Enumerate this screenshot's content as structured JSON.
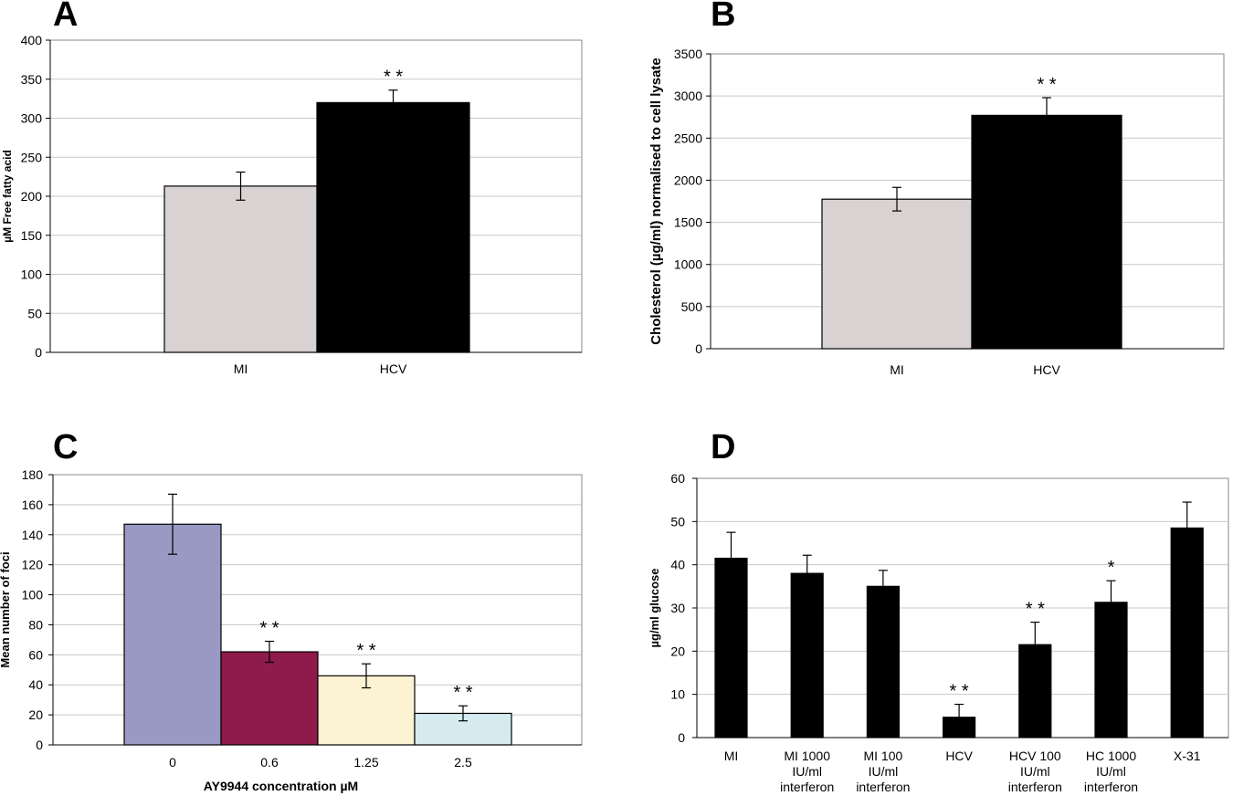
{
  "chart_data": [
    {
      "panel": "A",
      "type": "bar",
      "ylabel": "µM Free fatty acid",
      "xlabel": "",
      "ylim": [
        0,
        400
      ],
      "yticks": [
        0,
        50,
        100,
        150,
        200,
        250,
        300,
        350,
        400
      ],
      "grid": true,
      "categories": [
        "MI",
        "HCV"
      ],
      "values": [
        213,
        320
      ],
      "errors": [
        18,
        16
      ],
      "colors": [
        "#d9d2d2",
        "#000000"
      ],
      "significance": [
        "",
        "* *"
      ]
    },
    {
      "panel": "B",
      "type": "bar",
      "ylabel": "Cholesterol (µg/ml) normalised to cell lysate",
      "xlabel": "",
      "ylim": [
        0,
        3500
      ],
      "yticks": [
        0,
        500,
        1000,
        1500,
        2000,
        2500,
        3000,
        3500
      ],
      "grid": true,
      "categories": [
        "MI",
        "HCV"
      ],
      "values": [
        1775,
        2770
      ],
      "errors": [
        140,
        210
      ],
      "colors": [
        "#d9d2d2",
        "#000000"
      ],
      "significance": [
        "",
        "* *"
      ]
    },
    {
      "panel": "C",
      "type": "bar",
      "ylabel": "Mean number of foci",
      "xlabel": "AY9944 concentration µM",
      "ylim": [
        0,
        180
      ],
      "yticks": [
        0,
        20,
        40,
        60,
        80,
        100,
        120,
        140,
        160,
        180
      ],
      "grid": true,
      "categories": [
        "0",
        "0.6",
        "1.25",
        "2.5"
      ],
      "values": [
        147,
        62,
        46,
        21
      ],
      "errors": [
        20,
        7,
        8,
        5
      ],
      "colors": [
        "#9999c3",
        "#8e1b4b",
        "#fcf3d3",
        "#d5ebf0"
      ],
      "significance": [
        "",
        "* *",
        "* *",
        "* *"
      ]
    },
    {
      "panel": "D",
      "type": "bar",
      "ylabel": "µg/ml glucose",
      "xlabel": "",
      "ylim": [
        0,
        60
      ],
      "yticks": [
        0,
        10,
        20,
        30,
        40,
        50,
        60
      ],
      "grid": true,
      "categories": [
        [
          "MI"
        ],
        [
          "MI 1000",
          "IU/ml",
          "interferon"
        ],
        [
          "MI 100",
          "IU/ml",
          "interferon"
        ],
        [
          "HCV"
        ],
        [
          "HCV 100",
          "IU/ml",
          "interferon"
        ],
        [
          "HC 1000",
          "IU/ml",
          "interferon"
        ],
        [
          "X-31"
        ]
      ],
      "values": [
        41.5,
        38,
        35,
        4.7,
        21.5,
        31.3,
        48.5
      ],
      "errors": [
        6,
        4.2,
        3.7,
        3,
        5.2,
        5,
        6
      ],
      "colors": [
        "#000000",
        "#000000",
        "#000000",
        "#000000",
        "#000000",
        "#000000",
        "#000000"
      ],
      "significance": [
        "",
        "",
        "",
        "* *",
        "* *",
        "*",
        ""
      ]
    }
  ]
}
